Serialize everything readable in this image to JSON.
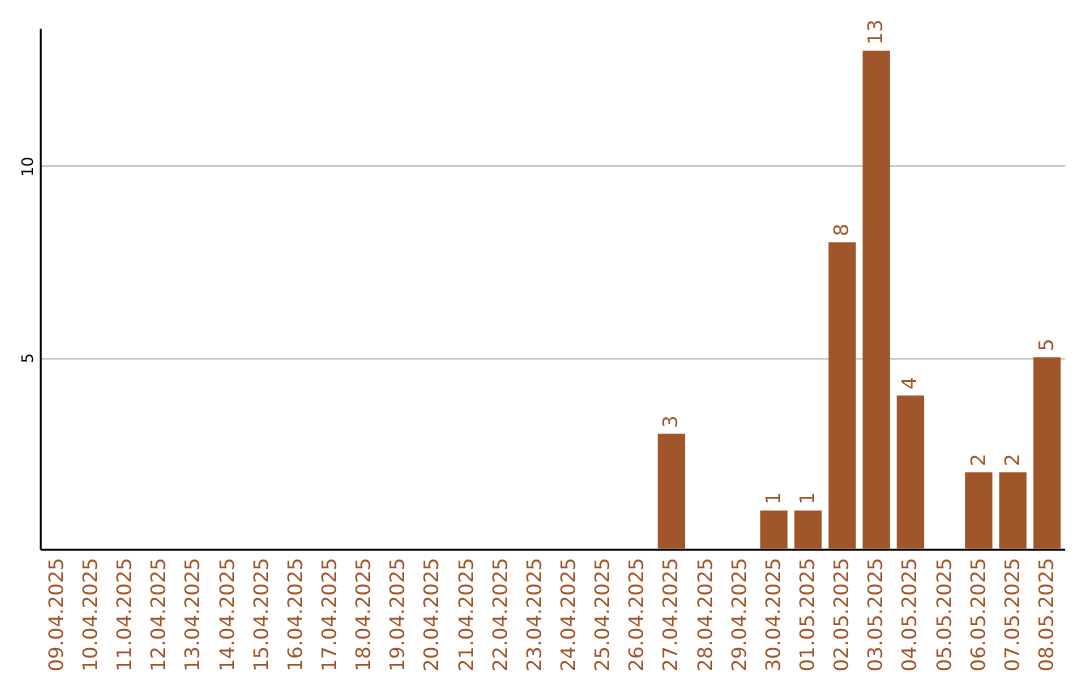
{
  "chart_data": {
    "type": "bar",
    "categories": [
      "09.04.2025",
      "10.04.2025",
      "11.04.2025",
      "12.04.2025",
      "13.04.2025",
      "14.04.2025",
      "15.04.2025",
      "16.04.2025",
      "17.04.2025",
      "18.04.2025",
      "19.04.2025",
      "20.04.2025",
      "21.04.2025",
      "22.04.2025",
      "23.04.2025",
      "24.04.2025",
      "25.04.2025",
      "26.04.2025",
      "27.04.2025",
      "28.04.2025",
      "29.04.2025",
      "30.04.2025",
      "01.05.2025",
      "02.05.2025",
      "03.05.2025",
      "04.05.2025",
      "05.05.2025",
      "06.05.2025",
      "07.05.2025",
      "08.05.2025"
    ],
    "values": [
      0,
      0,
      0,
      0,
      0,
      0,
      0,
      0,
      0,
      0,
      0,
      0,
      0,
      0,
      0,
      0,
      0,
      0,
      3,
      0,
      0,
      1,
      1,
      8,
      13,
      4,
      0,
      2,
      2,
      5
    ],
    "value_labels": [
      null,
      null,
      null,
      null,
      null,
      null,
      null,
      null,
      null,
      null,
      null,
      null,
      null,
      null,
      null,
      null,
      null,
      null,
      "3",
      null,
      null,
      "1",
      "1",
      "8",
      "13",
      "4",
      null,
      "2",
      "2",
      "5"
    ],
    "color": "#a0562a",
    "ylim": [
      0,
      13.6
    ],
    "yticks": [
      5,
      10
    ],
    "grid": "y"
  }
}
